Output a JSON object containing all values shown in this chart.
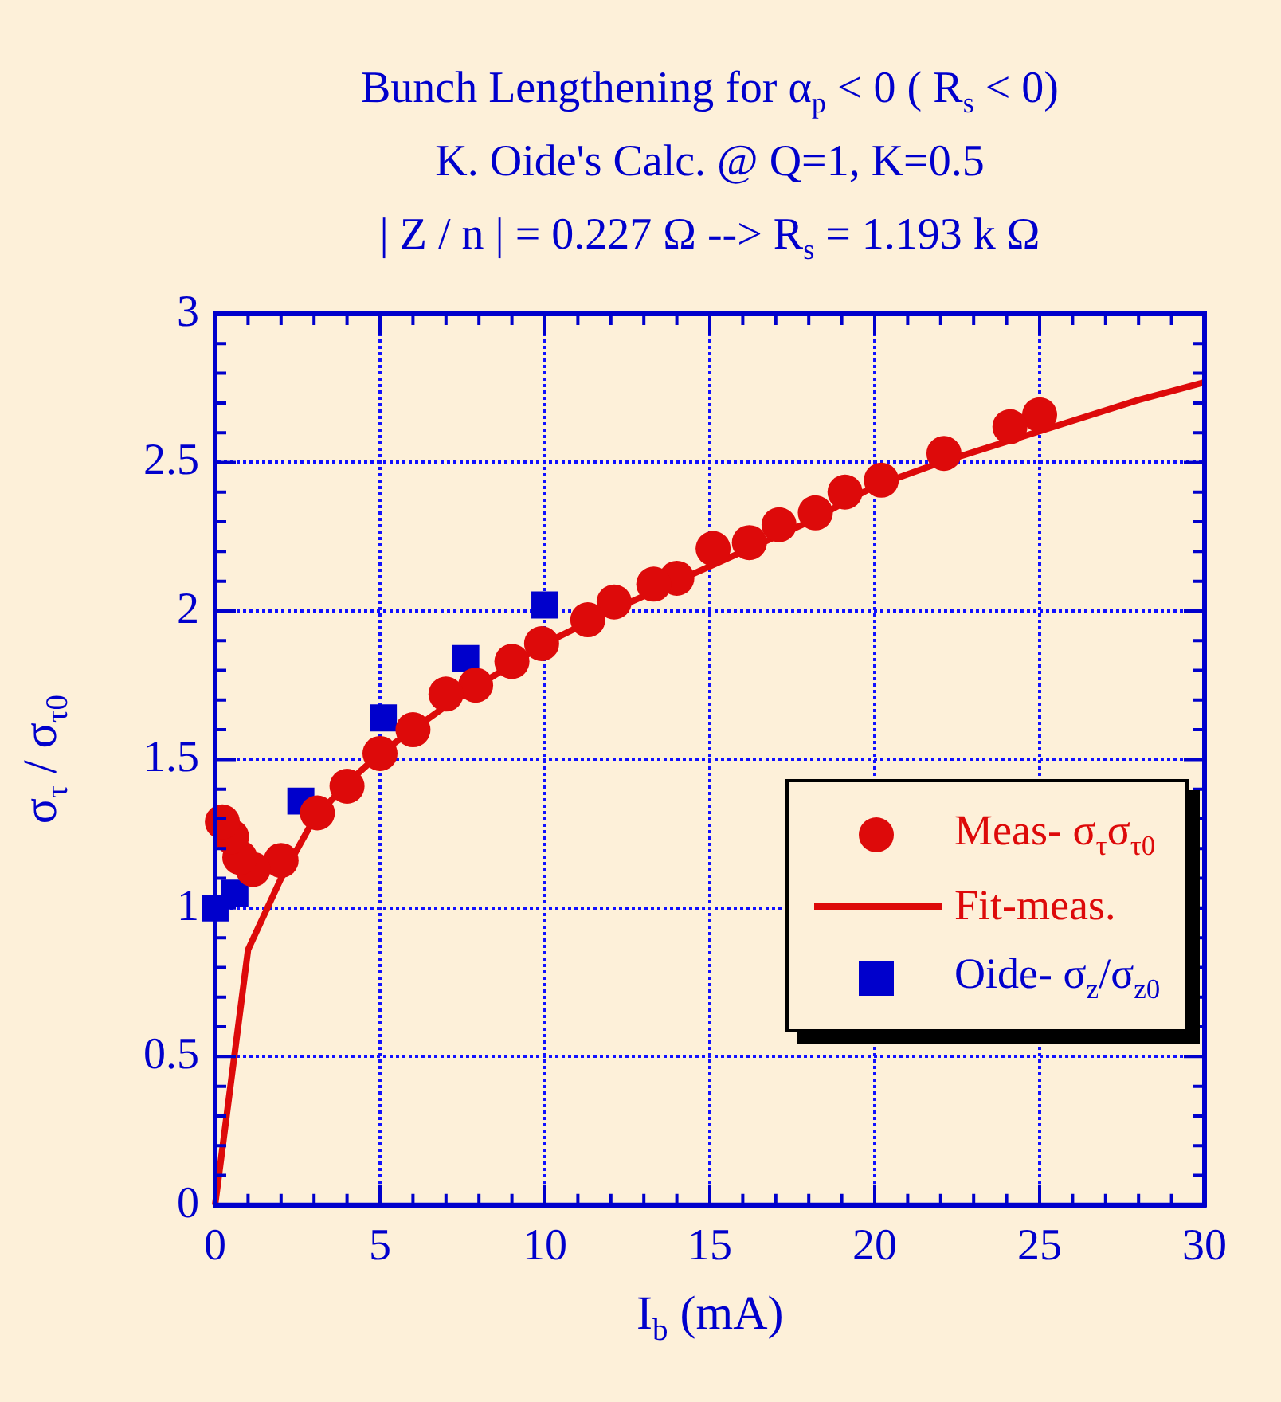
{
  "chart_data": {
    "type": "scatter",
    "title": "Bunch Lengthening for α$_{p}$ < 0 ( R$_{s}$ < 0)",
    "subtitle": "K. Oide's Calc. @ Q=1, K=0.5",
    "annotations": [
      "| Z / n | = 0.227 Ω --> R$_{s}$ = 1.193 k Ω"
    ],
    "xlabel": "I$_{b}$ (mA)",
    "ylabel": "σ$_{τ}$ / σ$_{τ0}$",
    "xlim": [
      0,
      30
    ],
    "ylim": [
      0,
      3
    ],
    "xticks": [
      0,
      {
        "value": 1,
        "label": null
      },
      {
        "value": 2,
        "label": null
      },
      {
        "value": 3,
        "label": null
      },
      {
        "value": 4,
        "label": null
      },
      5,
      {
        "value": 6,
        "label": null
      },
      {
        "value": 7,
        "label": null
      },
      {
        "value": 8,
        "label": null
      },
      {
        "value": 9,
        "label": null
      },
      10,
      {
        "value": 11,
        "label": null
      },
      {
        "value": 12,
        "label": null
      },
      {
        "value": 13,
        "label": null
      },
      {
        "value": 14,
        "label": null
      },
      15,
      {
        "value": 16,
        "label": null
      },
      {
        "value": 17,
        "label": null
      },
      {
        "value": 18,
        "label": null
      },
      {
        "value": 19,
        "label": null
      },
      20,
      {
        "value": 21,
        "label": null
      },
      {
        "value": 22,
        "label": null
      },
      {
        "value": 23,
        "label": null
      },
      {
        "value": 24,
        "label": null
      },
      25,
      {
        "value": 26,
        "label": null
      },
      {
        "value": 27,
        "label": null
      },
      {
        "value": 28,
        "label": null
      },
      {
        "value": 29,
        "label": null
      },
      30
    ],
    "yticks": [
      0,
      {
        "value": 0.1,
        "label": null
      },
      {
        "value": 0.2,
        "label": null
      },
      {
        "value": 0.3,
        "label": null
      },
      {
        "value": 0.4,
        "label": null
      },
      0.5,
      {
        "value": 0.6,
        "label": null
      },
      {
        "value": 0.7,
        "label": null
      },
      {
        "value": 0.8,
        "label": null
      },
      {
        "value": 0.9,
        "label": null
      },
      1,
      {
        "value": 1.1,
        "label": null
      },
      {
        "value": 1.2,
        "label": null
      },
      {
        "value": 1.3,
        "label": null
      },
      {
        "value": 1.4,
        "label": null
      },
      1.5,
      {
        "value": 1.6,
        "label": null
      },
      {
        "value": 1.7,
        "label": null
      },
      {
        "value": 1.8,
        "label": null
      },
      {
        "value": 1.9,
        "label": null
      },
      2,
      {
        "value": 2.1,
        "label": null
      },
      {
        "value": 2.2,
        "label": null
      },
      {
        "value": 2.3,
        "label": null
      },
      {
        "value": 2.4,
        "label": null
      },
      2.5,
      {
        "value": 2.6,
        "label": null
      },
      {
        "value": 2.7,
        "label": null
      },
      {
        "value": 2.8,
        "label": null
      },
      {
        "value": 2.9,
        "label": null
      },
      3
    ],
    "grid": true,
    "legend": "bottom right",
    "series": [
      {
        "name": "Meas- σ$_{τ}$σ$_{τ0}$",
        "marker": "circle",
        "color": "#dd0a0a",
        "x": [
          0.22,
          0.5,
          0.75,
          1.15,
          2.0,
          3.1,
          4.0,
          5.0,
          6.0,
          7.0,
          7.9,
          9.0,
          9.9,
          11.3,
          12.1,
          13.3,
          14.0,
          15.1,
          16.2,
          17.1,
          18.2,
          19.1,
          20.2,
          22.1,
          24.1,
          25.0
        ],
        "values": [
          1.29,
          1.24,
          1.17,
          1.13,
          1.16,
          1.32,
          1.41,
          1.52,
          1.6,
          1.72,
          1.75,
          1.83,
          1.89,
          1.97,
          2.03,
          2.09,
          2.11,
          2.21,
          2.23,
          2.29,
          2.33,
          2.4,
          2.44,
          2.53,
          2.62,
          2.66
        ]
      },
      {
        "name": "Fit-meas.",
        "type": "line",
        "marker": "none",
        "line_style": "solid",
        "color": "#dd0a0a",
        "x": [
          0,
          1,
          2,
          3,
          4,
          5,
          6,
          7,
          8,
          9,
          10,
          12,
          14,
          16,
          18,
          20,
          22,
          24,
          26,
          28,
          30
        ],
        "values": [
          0,
          0.86,
          1.1,
          1.3,
          1.42,
          1.52,
          1.6,
          1.68,
          1.75,
          1.82,
          1.89,
          2.0,
          2.1,
          2.2,
          2.3,
          2.42,
          2.5,
          2.57,
          2.64,
          2.71,
          2.77
        ]
      },
      {
        "name": "Oide- σ$_{z}$/σ$_{z0}$",
        "marker": "square",
        "color": "#0000cc",
        "x": [
          0,
          0.6,
          2.6,
          5.1,
          7.6,
          10.0
        ],
        "values": [
          1.0,
          1.05,
          1.36,
          1.64,
          1.84,
          2.02
        ]
      }
    ]
  }
}
